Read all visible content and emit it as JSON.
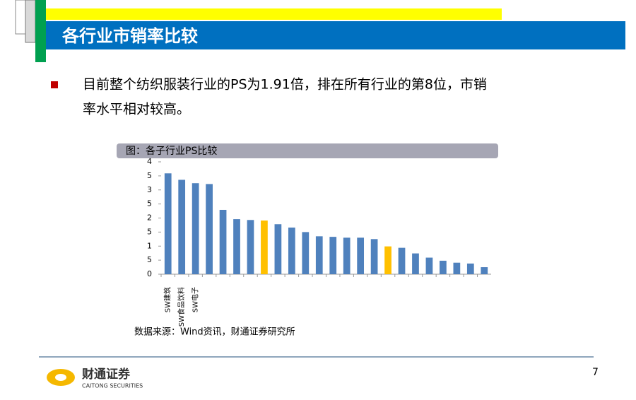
{
  "slide": {
    "title": "各行业市销率比较",
    "bullet": [
      "目前整个纺织服装行业的PS为1.91倍，排在所有行业的第8位，市销",
      "率水平相对较高。"
    ],
    "source": "数据来源：Wind资讯，财通证券研究所",
    "logo_cn": "财通证券",
    "logo_en": "CAITONG SECURITIES",
    "page": "7"
  },
  "chart_data": {
    "type": "bar",
    "title": "图：各子行业PS比较",
    "categories": [
      "SW建筑",
      "SW食品饮料",
      "SW电子",
      null,
      null,
      null,
      null,
      null,
      null,
      null,
      null,
      null,
      null,
      null,
      null,
      null,
      null,
      null,
      null,
      null,
      null,
      null,
      null,
      null
    ],
    "values": [
      3.59,
      3.36,
      3.24,
      3.21,
      2.29,
      1.96,
      1.93,
      1.91,
      1.78,
      1.66,
      1.5,
      1.35,
      1.33,
      1.3,
      1.3,
      1.25,
      0.99,
      0.94,
      0.74,
      0.59,
      0.48,
      0.41,
      0.38,
      0.25
    ],
    "colors": [
      "#4f81bd",
      "#4f81bd",
      "#4f81bd",
      "#4f81bd",
      "#4f81bd",
      "#4f81bd",
      "#4f81bd",
      "#ffc000",
      "#4f81bd",
      "#4f81bd",
      "#4f81bd",
      "#4f81bd",
      "#4f81bd",
      "#4f81bd",
      "#4f81bd",
      "#4f81bd",
      "#ffc000",
      "#4f81bd",
      "#4f81bd",
      "#4f81bd",
      "#4f81bd",
      "#4f81bd",
      "#4f81bd",
      "#4f81bd"
    ],
    "ylim": [
      0,
      4
    ],
    "yticks": [
      0,
      {
        "value": 0.5,
        "label": "5"
      },
      1,
      {
        "value": 1.5,
        "label": "5"
      },
      2,
      {
        "value": 2.5,
        "label": "5"
      },
      3,
      {
        "value": 3.5,
        "label": "5"
      },
      4
    ]
  }
}
